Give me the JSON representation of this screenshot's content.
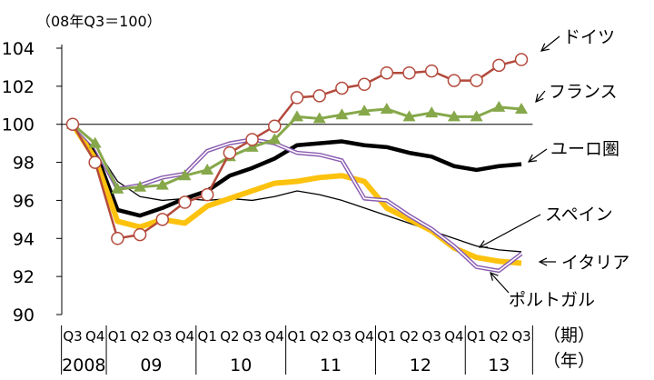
{
  "chart_data": {
    "type": "line",
    "title": "",
    "unit_label": "（08年Q3＝100）",
    "x_period_caption": "（期）",
    "x_year_caption": "（年）",
    "y_ticks": [
      "90",
      "92",
      "94",
      "96",
      "98",
      "100",
      "102",
      "104"
    ],
    "ylim": [
      90,
      104
    ],
    "reference_line": 100,
    "x": [
      "Q3",
      "Q4",
      "Q1",
      "Q2",
      "Q3",
      "Q4",
      "Q1",
      "Q2",
      "Q3",
      "Q4",
      "Q1",
      "Q2",
      "Q3",
      "Q4",
      "Q1",
      "Q2",
      "Q3",
      "Q4",
      "Q1",
      "Q2",
      "Q3"
    ],
    "years": [
      {
        "label": "2008",
        "start": 0,
        "end": 1
      },
      {
        "label": "09",
        "start": 2,
        "end": 5
      },
      {
        "label": "10",
        "start": 6,
        "end": 9
      },
      {
        "label": "11",
        "start": 10,
        "end": 13
      },
      {
        "label": "12",
        "start": 14,
        "end": 17
      },
      {
        "label": "13",
        "start": 18,
        "end": 20
      }
    ],
    "series": [
      {
        "name": "ドイツ",
        "color": "#b34a3c",
        "marker": "circle",
        "values": [
          100,
          98.0,
          94.0,
          94.2,
          95.0,
          95.9,
          96.3,
          98.5,
          99.2,
          99.9,
          101.4,
          101.5,
          101.9,
          102.1,
          102.7,
          102.7,
          102.8,
          102.3,
          102.3,
          103.1,
          103.4
        ]
      },
      {
        "name": "フランス",
        "color": "#86a84a",
        "marker": "triangle",
        "values": [
          100,
          99.0,
          96.6,
          96.7,
          96.8,
          97.3,
          97.6,
          98.3,
          98.8,
          99.2,
          100.4,
          100.3,
          100.5,
          100.7,
          100.8,
          100.4,
          100.6,
          100.4,
          100.4,
          100.9,
          100.8
        ]
      },
      {
        "name": "ユーロ圏",
        "color": "#000000",
        "marker": "none",
        "values": [
          100,
          98.6,
          95.5,
          95.2,
          95.6,
          96.1,
          96.5,
          97.3,
          97.7,
          98.2,
          98.9,
          99.0,
          99.1,
          98.9,
          98.8,
          98.5,
          98.3,
          97.8,
          97.6,
          97.8,
          97.9
        ]
      },
      {
        "name": "スペイン",
        "color": "#000000",
        "marker": "none",
        "values": [
          100,
          98.8,
          97.0,
          96.2,
          96.0,
          96.1,
          96.0,
          96.1,
          96.0,
          96.2,
          96.5,
          96.3,
          96.0,
          95.6,
          95.2,
          94.8,
          94.4,
          94.0,
          93.6,
          93.4,
          93.3
        ]
      },
      {
        "name": "イタリア",
        "color": "#fcc20e",
        "marker": "none",
        "values": [
          100,
          98.2,
          94.9,
          94.6,
          95.0,
          94.8,
          95.7,
          96.1,
          96.5,
          96.9,
          97.0,
          97.2,
          97.3,
          97.0,
          95.6,
          95.0,
          94.4,
          93.5,
          93.0,
          92.8,
          92.7
        ]
      },
      {
        "name": "ポルトガル",
        "color": "#8a5cb0",
        "marker": "none",
        "values": [
          100,
          98.8,
          96.6,
          96.8,
          97.2,
          97.4,
          98.6,
          99.0,
          99.2,
          99.0,
          98.5,
          98.4,
          98.1,
          96.1,
          96.0,
          95.2,
          94.5,
          93.6,
          92.5,
          92.3,
          93.2
        ]
      }
    ]
  }
}
